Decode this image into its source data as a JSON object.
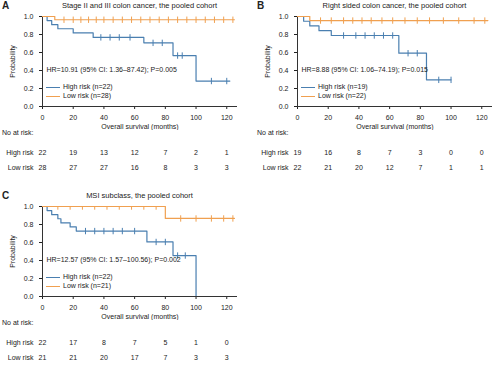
{
  "chart_data": [
    {
      "type": "line",
      "label": "A",
      "title": "Stage II and III colon cancer, the pooled cohort",
      "annotation": "HR=10.91 (95% CI: 1.36–87.42); P=0.005",
      "xlabel": "Overall survival (months)",
      "ylabel": "Probability",
      "xlim": [
        0,
        127
      ],
      "ylim": [
        0,
        1
      ],
      "xticks": [
        0,
        20,
        40,
        60,
        80,
        100,
        120
      ],
      "yticks": [
        {
          "value": 0,
          "label": "0.0"
        },
        {
          "value": 0.2,
          "label": "0.2"
        },
        {
          "value": 0.4,
          "label": "0.4"
        },
        {
          "value": 0.6,
          "label": "0.6"
        },
        {
          "value": 0.8,
          "label": "0.8"
        },
        {
          "value": 1,
          "label": "1.0"
        }
      ],
      "line_style": "step",
      "marker": "vline",
      "series": [
        {
          "name": "High risk (n=22)",
          "color": "#4a7fb0",
          "x": [
            0,
            3,
            6,
            10,
            20,
            33,
            66,
            85,
            100,
            122
          ],
          "values": [
            1,
            0.955,
            0.909,
            0.864,
            0.818,
            0.768,
            0.707,
            0.566,
            0.283,
            0.283
          ],
          "censored": {
            "x": [
              38,
              44,
              50,
              57,
              72,
              78,
              88,
              91,
              110,
              120
            ],
            "y": [
              0.768,
              0.768,
              0.768,
              0.768,
              0.707,
              0.707,
              0.566,
              0.566,
              0.283,
              0.283
            ]
          }
        },
        {
          "name": "Low risk (n=28)",
          "color": "#f0a050",
          "x": [
            0,
            8,
            125
          ],
          "values": [
            1,
            0.964,
            0.964
          ],
          "censored": {
            "x": [
              14,
              20,
              25,
              30,
              35,
              40,
              46,
              52,
              58,
              64,
              70,
              76,
              82,
              88,
              94,
              100,
              106,
              112,
              118,
              124
            ],
            "y": [
              0.964,
              0.964,
              0.964,
              0.964,
              0.964,
              0.964,
              0.964,
              0.964,
              0.964,
              0.964,
              0.964,
              0.964,
              0.964,
              0.964,
              0.964,
              0.964,
              0.964,
              0.964,
              0.964,
              0.964
            ]
          }
        }
      ],
      "risk_table": {
        "title": "No at risk:",
        "x": [
          0,
          20,
          40,
          60,
          80,
          100,
          120
        ],
        "rows": [
          {
            "name": "High risk",
            "values": [
              22,
              19,
              13,
              12,
              7,
              2,
              1
            ]
          },
          {
            "name": "Low risk",
            "values": [
              28,
              27,
              27,
              16,
              8,
              3,
              3
            ]
          }
        ]
      }
    },
    {
      "type": "line",
      "label": "B",
      "title": "Right sided colon cancer, the pooled cohort",
      "annotation": "HR=8.88 (95% CI: 1.06–74.19); P=0.015",
      "xlabel": "Overall survival (months)",
      "ylabel": "Probability",
      "xlim": [
        0,
        127
      ],
      "ylim": [
        0,
        1
      ],
      "xticks": [
        0,
        20,
        40,
        60,
        80,
        100,
        120
      ],
      "yticks": [
        {
          "value": 0,
          "label": "0.0"
        },
        {
          "value": 0.2,
          "label": "0.2"
        },
        {
          "value": 0.4,
          "label": "0.4"
        },
        {
          "value": 0.6,
          "label": "0.6"
        },
        {
          "value": 0.8,
          "label": "0.8"
        },
        {
          "value": 1,
          "label": "1.0"
        }
      ],
      "line_style": "step",
      "marker": "vline",
      "series": [
        {
          "name": "High risk (n=19)",
          "color": "#4a7fb0",
          "x": [
            0,
            4,
            8,
            14,
            22,
            66,
            84,
            100
          ],
          "values": [
            1,
            0.947,
            0.895,
            0.842,
            0.789,
            0.592,
            0.296,
            0.296
          ],
          "censored": {
            "x": [
              30,
              38,
              44,
              50,
              56,
              62,
              72,
              78,
              92,
              100
            ],
            "y": [
              0.789,
              0.789,
              0.789,
              0.789,
              0.789,
              0.789,
              0.592,
              0.592,
              0.296,
              0.296
            ]
          }
        },
        {
          "name": "Low risk (n=22)",
          "color": "#f0a050",
          "x": [
            0,
            8,
            124
          ],
          "values": [
            1,
            0.955,
            0.955
          ],
          "censored": {
            "x": [
              15,
              22,
              30,
              36,
              42,
              48,
              55,
              62,
              70,
              78,
              86,
              95,
              105,
              115,
              122
            ],
            "y": [
              0.955,
              0.955,
              0.955,
              0.955,
              0.955,
              0.955,
              0.955,
              0.955,
              0.955,
              0.955,
              0.955,
              0.955,
              0.955,
              0.955,
              0.955
            ]
          }
        }
      ],
      "risk_table": {
        "title": "No at risk:",
        "x": [
          0,
          20,
          40,
          60,
          80,
          100,
          120
        ],
        "rows": [
          {
            "name": "High risk",
            "values": [
              19,
              16,
              8,
              7,
              3,
              0,
              0
            ]
          },
          {
            "name": "Low risk",
            "values": [
              22,
              21,
              20,
              12,
              7,
              1,
              1
            ]
          }
        ]
      }
    },
    {
      "type": "line",
      "label": "C",
      "title": "MSI subclass, the pooled cohort",
      "annotation": "HR=12.57 (95% CI: 1.57–100.56); P=0.002",
      "xlabel": "Overall survival (months)",
      "ylabel": "Probability",
      "xlim": [
        0,
        127
      ],
      "ylim": [
        0,
        1
      ],
      "xticks": [
        0,
        20,
        40,
        60,
        80,
        100,
        120
      ],
      "yticks": [
        {
          "value": 0,
          "label": "0.0"
        },
        {
          "value": 0.2,
          "label": "0.2"
        },
        {
          "value": 0.4,
          "label": "0.4"
        },
        {
          "value": 0.6,
          "label": "0.6"
        },
        {
          "value": 0.8,
          "label": "0.8"
        },
        {
          "value": 1,
          "label": "1.0"
        }
      ],
      "line_style": "step",
      "marker": "vline",
      "series": [
        {
          "name": "High risk (n=22)",
          "color": "#4a7fb0",
          "x": [
            0,
            3,
            6,
            10,
            12,
            18,
            22,
            68,
            85,
            100
          ],
          "values": [
            1,
            0.955,
            0.909,
            0.864,
            0.818,
            0.773,
            0.727,
            0.606,
            0.455,
            0
          ],
          "censored": {
            "x": [
              28,
              34,
              40,
              46,
              52,
              60,
              74,
              80,
              88,
              93
            ],
            "y": [
              0.727,
              0.727,
              0.727,
              0.727,
              0.727,
              0.727,
              0.606,
              0.606,
              0.455,
              0.455
            ]
          }
        },
        {
          "name": "Low risk (n=21)",
          "color": "#f0a050",
          "x": [
            0,
            80,
            125
          ],
          "values": [
            1,
            0.867,
            0.867
          ],
          "censored": {
            "x": [
              10,
              18,
              26,
              34,
              42,
              50,
              58,
              66,
              74,
              90,
              100,
              110,
              118,
              124
            ],
            "y": [
              1,
              1,
              1,
              1,
              1,
              1,
              1,
              1,
              1,
              0.867,
              0.867,
              0.867,
              0.867,
              0.867
            ]
          }
        }
      ],
      "risk_table": {
        "title": "No at risk:",
        "x": [
          0,
          20,
          40,
          60,
          80,
          100,
          120
        ],
        "rows": [
          {
            "name": "High risk",
            "values": [
              22,
              17,
              8,
              7,
              5,
              1,
              0
            ]
          },
          {
            "name": "Low risk",
            "values": [
              21,
              21,
              20,
              17,
              7,
              3,
              3
            ]
          }
        ]
      }
    }
  ]
}
